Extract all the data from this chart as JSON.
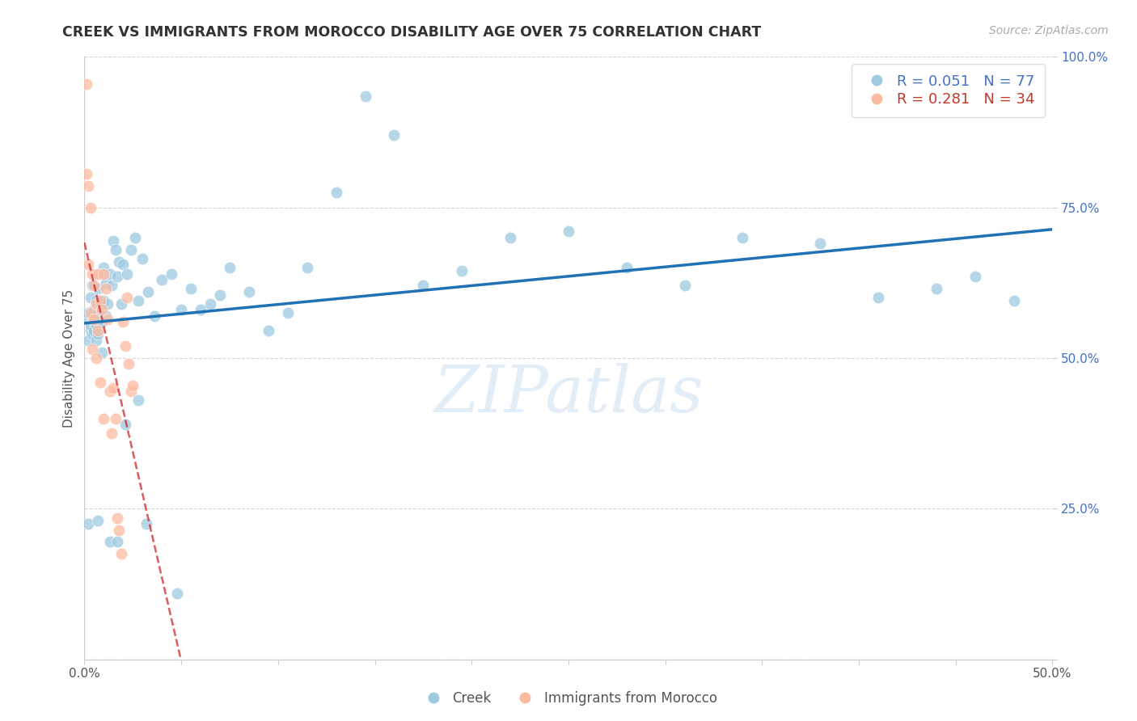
{
  "title": "CREEK VS IMMIGRANTS FROM MOROCCO DISABILITY AGE OVER 75 CORRELATION CHART",
  "source": "Source: ZipAtlas.com",
  "ylabel": "Disability Age Over 75",
  "xlim": [
    0.0,
    0.5
  ],
  "ylim": [
    0.0,
    1.0
  ],
  "creek_color": "#9ecae1",
  "morocco_color": "#fcbba1",
  "trendline_creek_color": "#2171b5",
  "trendline_morocco_color": "#cb181d",
  "background_color": "#ffffff",
  "grid_color": "#cccccc",
  "legend_creek_R": "0.051",
  "legend_creek_N": "77",
  "legend_morocco_R": "0.281",
  "legend_morocco_N": "34",
  "watermark": "ZIPatlas",
  "creek_x": [
    0.001,
    0.002,
    0.002,
    0.003,
    0.003,
    0.003,
    0.004,
    0.004,
    0.004,
    0.005,
    0.005,
    0.005,
    0.006,
    0.006,
    0.006,
    0.007,
    0.007,
    0.007,
    0.008,
    0.008,
    0.009,
    0.009,
    0.01,
    0.01,
    0.011,
    0.011,
    0.012,
    0.013,
    0.014,
    0.015,
    0.016,
    0.017,
    0.018,
    0.019,
    0.02,
    0.022,
    0.024,
    0.026,
    0.028,
    0.03,
    0.033,
    0.036,
    0.04,
    0.045,
    0.05,
    0.055,
    0.06,
    0.065,
    0.07,
    0.075,
    0.085,
    0.095,
    0.105,
    0.115,
    0.13,
    0.145,
    0.16,
    0.175,
    0.195,
    0.22,
    0.25,
    0.28,
    0.31,
    0.34,
    0.38,
    0.41,
    0.44,
    0.46,
    0.48,
    0.002,
    0.007,
    0.013,
    0.017,
    0.021,
    0.028,
    0.032,
    0.048
  ],
  "creek_y": [
    0.565,
    0.575,
    0.53,
    0.545,
    0.555,
    0.6,
    0.57,
    0.54,
    0.62,
    0.56,
    0.58,
    0.545,
    0.595,
    0.555,
    0.53,
    0.615,
    0.575,
    0.54,
    0.64,
    0.59,
    0.56,
    0.51,
    0.65,
    0.595,
    0.625,
    0.57,
    0.59,
    0.64,
    0.62,
    0.695,
    0.68,
    0.635,
    0.66,
    0.59,
    0.655,
    0.64,
    0.68,
    0.7,
    0.595,
    0.665,
    0.61,
    0.57,
    0.63,
    0.64,
    0.58,
    0.615,
    0.58,
    0.59,
    0.605,
    0.65,
    0.61,
    0.545,
    0.575,
    0.65,
    0.775,
    0.935,
    0.87,
    0.62,
    0.645,
    0.7,
    0.71,
    0.65,
    0.62,
    0.7,
    0.69,
    0.6,
    0.615,
    0.635,
    0.595,
    0.225,
    0.23,
    0.195,
    0.195,
    0.39,
    0.43,
    0.225,
    0.11
  ],
  "morocco_x": [
    0.001,
    0.001,
    0.002,
    0.002,
    0.003,
    0.003,
    0.004,
    0.004,
    0.005,
    0.005,
    0.006,
    0.006,
    0.007,
    0.007,
    0.008,
    0.008,
    0.009,
    0.01,
    0.01,
    0.011,
    0.012,
    0.013,
    0.014,
    0.015,
    0.016,
    0.017,
    0.018,
    0.019,
    0.02,
    0.021,
    0.022,
    0.023,
    0.024,
    0.025
  ],
  "morocco_y": [
    0.955,
    0.805,
    0.785,
    0.655,
    0.75,
    0.575,
    0.64,
    0.515,
    0.62,
    0.565,
    0.59,
    0.5,
    0.64,
    0.545,
    0.595,
    0.46,
    0.58,
    0.64,
    0.4,
    0.615,
    0.565,
    0.445,
    0.375,
    0.45,
    0.4,
    0.235,
    0.215,
    0.175,
    0.56,
    0.52,
    0.6,
    0.49,
    0.445,
    0.455
  ]
}
